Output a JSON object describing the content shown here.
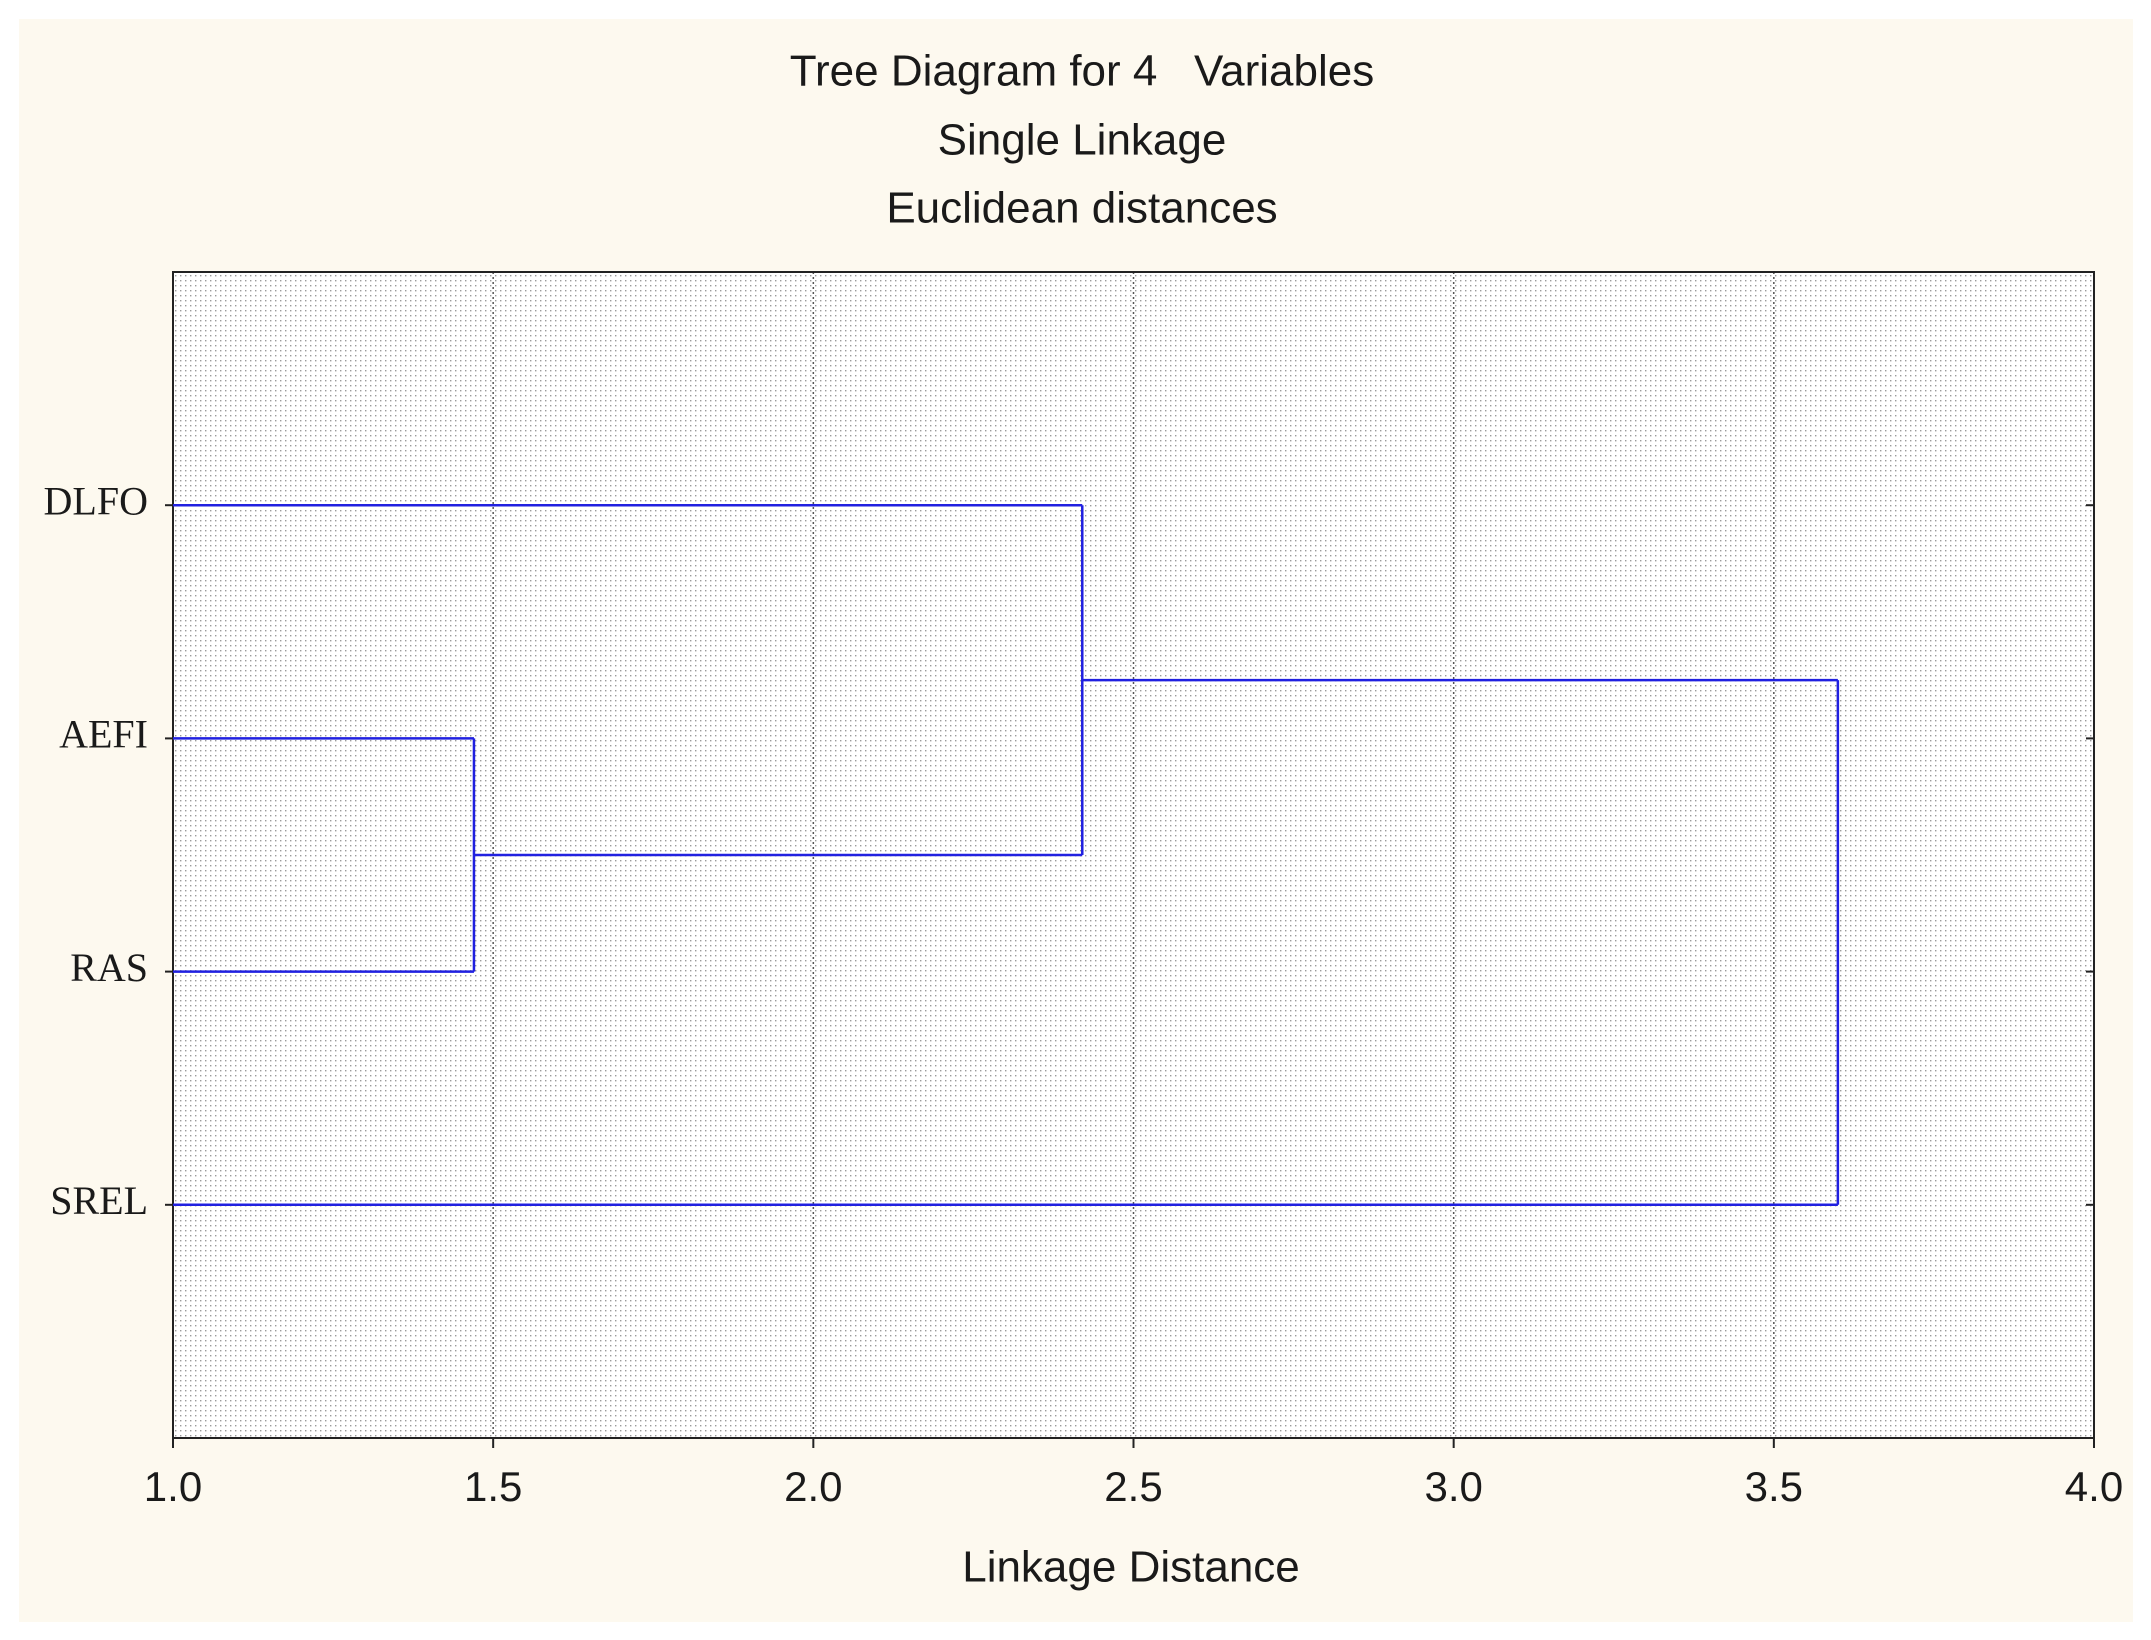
{
  "chart_data": {
    "type": "dendrogram",
    "title": "Tree Diagram for 4   Variables",
    "subtitle": "Single Linkage",
    "subtitle2": "Euclidean distances",
    "x_label": "Linkage Distance",
    "categories": [
      "DLFO",
      "AEFI",
      "RAS",
      "SREL"
    ],
    "merges": [
      {
        "leaves": [
          1,
          2
        ],
        "distance": 1.47
      },
      {
        "leaves": [
          0,
          1,
          2
        ],
        "distance": 2.42
      },
      {
        "leaves": [
          0,
          1,
          2,
          3
        ],
        "distance": 3.6
      }
    ],
    "color": "#2020e0",
    "xlim": [
      1.0,
      4.0
    ],
    "xticks": [
      {
        "value": 1.0,
        "label": "1.0"
      },
      {
        "value": 1.5,
        "label": "1.5"
      },
      {
        "value": 2.0,
        "label": "2.0"
      },
      {
        "value": 2.5,
        "label": "2.5"
      },
      {
        "value": 3.0,
        "label": "3.0"
      },
      {
        "value": 3.5,
        "label": "3.5"
      },
      {
        "value": 4.0,
        "label": "4.0"
      }
    ],
    "grid": true
  }
}
